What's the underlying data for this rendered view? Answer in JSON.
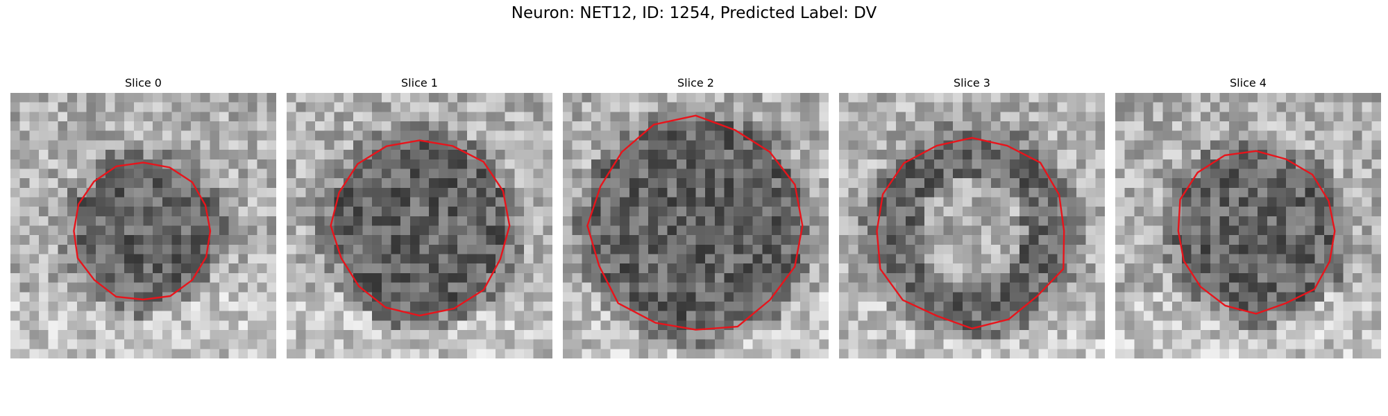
{
  "figure": {
    "title": "Neuron: NET12, ID: 1254, Predicted Label: DV"
  },
  "colors": {
    "contour": "#e8141b",
    "background": "#ffffff"
  },
  "panels": [
    {
      "title": "Slice 0",
      "seed": 11,
      "bright_ring": false,
      "center": [
        0.5,
        0.52
      ],
      "radius": 0.26
    },
    {
      "title": "Slice 1",
      "seed": 29,
      "bright_ring": false,
      "center": [
        0.5,
        0.5
      ],
      "radius": 0.33
    },
    {
      "title": "Slice 2",
      "seed": 47,
      "bright_ring": false,
      "center": [
        0.5,
        0.5
      ],
      "radius": 0.4
    },
    {
      "title": "Slice 3",
      "seed": 73,
      "bright_ring": true,
      "center": [
        0.5,
        0.52
      ],
      "radius": 0.36
    },
    {
      "title": "Slice 4",
      "seed": 97,
      "bright_ring": false,
      "center": [
        0.53,
        0.52
      ],
      "radius": 0.3
    }
  ]
}
